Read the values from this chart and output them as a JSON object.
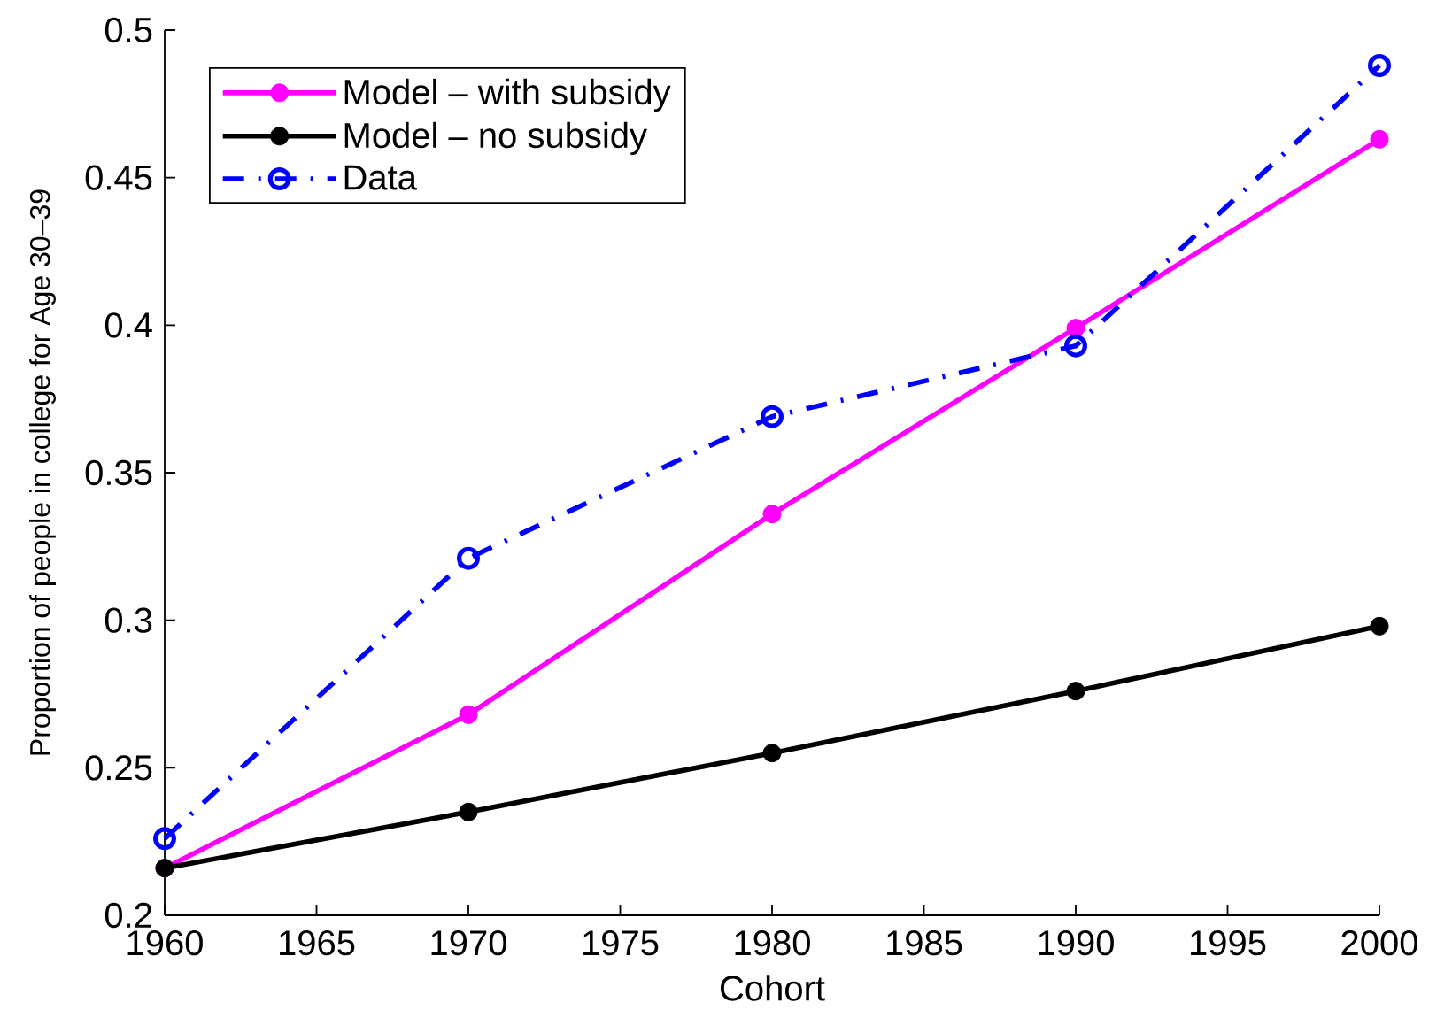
{
  "chart_data": {
    "type": "line",
    "xlabel": "Cohort",
    "ylabel": "Proportion of people in college for Age 30–39",
    "x": [
      1960,
      1970,
      1980,
      1990,
      2000
    ],
    "series": [
      {
        "name": "Model – with subsidy",
        "color": "#ff00ff",
        "values": [
          0.216,
          0.268,
          0.336,
          0.399,
          0.463
        ],
        "marker": "circle",
        "line_style": "solid"
      },
      {
        "name": "Model – no subsidy",
        "color": "#000000",
        "values": [
          0.216,
          0.235,
          0.255,
          0.276,
          0.298
        ],
        "marker": "circle",
        "line_style": "solid"
      },
      {
        "name": "Data",
        "color": "#0000ff",
        "values": [
          0.226,
          0.321,
          0.369,
          0.393,
          0.488
        ],
        "marker": "circle_open",
        "line_style": "dashdot"
      }
    ],
    "xlim": [
      1960,
      2000
    ],
    "ylim": [
      0.2,
      0.5
    ],
    "xticks": [
      1960,
      1965,
      1970,
      1975,
      1980,
      1985,
      1990,
      1995,
      2000
    ],
    "yticks": [
      0.2,
      0.25,
      0.3,
      0.35,
      0.4,
      0.45,
      0.5
    ],
    "legend": "top left"
  }
}
